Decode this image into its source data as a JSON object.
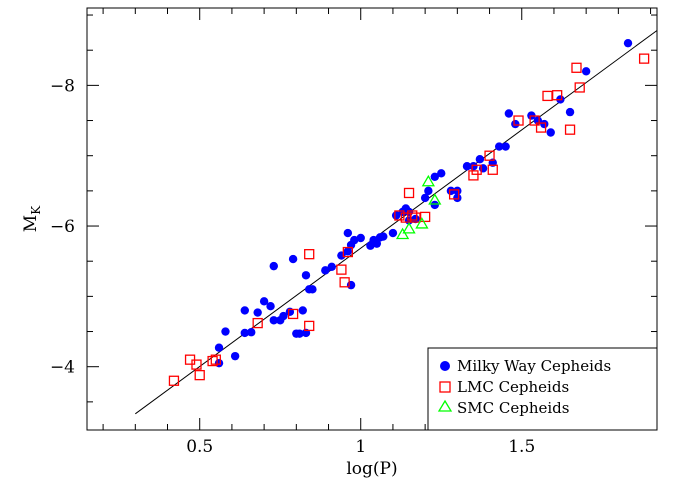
{
  "chart_data": {
    "type": "scatter",
    "xlabel": "log(P)",
    "ylabel_main": "M",
    "ylabel_sub": "K",
    "xlim": [
      0.15,
      1.92
    ],
    "ylim": [
      -3.1,
      -9.1
    ],
    "x_ticks_major": [
      0.5,
      1.0,
      1.5
    ],
    "x_tick_labels": [
      "0.5",
      "1",
      "1.5"
    ],
    "x_ticks_minor": [
      0.2,
      0.3,
      0.4,
      0.6,
      0.7,
      0.8,
      0.9,
      1.1,
      1.2,
      1.3,
      1.4,
      1.6,
      1.7,
      1.8,
      1.9
    ],
    "y_ticks_major": [
      -4,
      -6,
      -8
    ],
    "y_tick_labels": [
      "−4",
      "−6",
      "−8"
    ],
    "y_ticks_minor": [
      -3.5,
      -4.5,
      -5,
      -5.5,
      -6.5,
      -7,
      -7.5,
      -8.5,
      -9
    ],
    "fit_line": {
      "x": [
        0.3,
        1.92
      ],
      "y": [
        -3.33,
        -8.78
      ]
    },
    "legend_position": "bottom-right",
    "grid": false,
    "series": [
      {
        "name": "Milky Way Cepheids",
        "marker": "filled-circle",
        "color": "#0000ff",
        "points": [
          [
            0.56,
            -4.05
          ],
          [
            0.61,
            -4.15
          ],
          [
            0.56,
            -4.27
          ],
          [
            0.58,
            -4.5
          ],
          [
            0.64,
            -4.48
          ],
          [
            0.66,
            -4.49
          ],
          [
            0.64,
            -4.8
          ],
          [
            0.68,
            -4.77
          ],
          [
            0.7,
            -4.93
          ],
          [
            0.72,
            -4.86
          ],
          [
            0.73,
            -4.66
          ],
          [
            0.75,
            -4.66
          ],
          [
            0.76,
            -4.72
          ],
          [
            0.78,
            -4.78
          ],
          [
            0.8,
            -4.47
          ],
          [
            0.81,
            -4.47
          ],
          [
            0.83,
            -4.48
          ],
          [
            0.82,
            -4.8
          ],
          [
            0.84,
            -5.1
          ],
          [
            0.85,
            -5.1
          ],
          [
            0.83,
            -5.3
          ],
          [
            0.79,
            -5.53
          ],
          [
            0.73,
            -5.43
          ],
          [
            0.89,
            -5.37
          ],
          [
            0.91,
            -5.42
          ],
          [
            0.94,
            -5.58
          ],
          [
            0.96,
            -5.64
          ],
          [
            0.97,
            -5.16
          ],
          [
            0.97,
            -5.73
          ],
          [
            0.98,
            -5.8
          ],
          [
            1.0,
            -5.83
          ],
          [
            0.96,
            -5.9
          ],
          [
            1.03,
            -5.72
          ],
          [
            1.04,
            -5.8
          ],
          [
            1.05,
            -5.75
          ],
          [
            1.06,
            -5.84
          ],
          [
            1.07,
            -5.85
          ],
          [
            1.1,
            -5.9
          ],
          [
            1.11,
            -6.15
          ],
          [
            1.13,
            -6.2
          ],
          [
            1.14,
            -6.25
          ],
          [
            1.15,
            -6.2
          ],
          [
            1.15,
            -6.08
          ],
          [
            1.17,
            -6.1
          ],
          [
            1.2,
            -6.4
          ],
          [
            1.23,
            -6.3
          ],
          [
            1.21,
            -6.5
          ],
          [
            1.23,
            -6.7
          ],
          [
            1.25,
            -6.75
          ],
          [
            1.28,
            -6.5
          ],
          [
            1.3,
            -6.4
          ],
          [
            1.3,
            -6.5
          ],
          [
            1.33,
            -6.85
          ],
          [
            1.35,
            -6.85
          ],
          [
            1.37,
            -6.95
          ],
          [
            1.38,
            -6.82
          ],
          [
            1.41,
            -6.9
          ],
          [
            1.43,
            -7.13
          ],
          [
            1.45,
            -7.13
          ],
          [
            1.46,
            -7.6
          ],
          [
            1.48,
            -7.45
          ],
          [
            1.53,
            -7.57
          ],
          [
            1.55,
            -7.5
          ],
          [
            1.57,
            -7.45
          ],
          [
            1.59,
            -7.33
          ],
          [
            1.62,
            -7.8
          ],
          [
            1.65,
            -7.62
          ],
          [
            1.7,
            -8.2
          ],
          [
            1.83,
            -8.6
          ]
        ]
      },
      {
        "name": "LMC Cepheids",
        "marker": "open-square",
        "color": "#ff0000",
        "points": [
          [
            0.42,
            -3.8
          ],
          [
            0.47,
            -4.1
          ],
          [
            0.49,
            -4.03
          ],
          [
            0.5,
            -3.88
          ],
          [
            0.54,
            -4.08
          ],
          [
            0.55,
            -4.1
          ],
          [
            0.68,
            -4.62
          ],
          [
            0.79,
            -4.75
          ],
          [
            0.84,
            -4.58
          ],
          [
            0.84,
            -5.6
          ],
          [
            0.94,
            -5.38
          ],
          [
            0.95,
            -5.2
          ],
          [
            0.96,
            -5.63
          ],
          [
            1.12,
            -6.15
          ],
          [
            1.14,
            -6.12
          ],
          [
            1.15,
            -6.47
          ],
          [
            1.16,
            -6.15
          ],
          [
            1.17,
            -6.12
          ],
          [
            1.2,
            -6.13
          ],
          [
            1.29,
            -6.45
          ],
          [
            1.35,
            -6.72
          ],
          [
            1.36,
            -6.8
          ],
          [
            1.4,
            -7.0
          ],
          [
            1.41,
            -6.8
          ],
          [
            1.49,
            -7.5
          ],
          [
            1.54,
            -7.5
          ],
          [
            1.56,
            -7.4
          ],
          [
            1.58,
            -7.85
          ],
          [
            1.61,
            -7.86
          ],
          [
            1.65,
            -7.37
          ],
          [
            1.67,
            -8.25
          ],
          [
            1.68,
            -7.97
          ],
          [
            1.88,
            -8.38
          ]
        ]
      },
      {
        "name": "SMC Cepheids",
        "marker": "open-triangle",
        "color": "#00ff00",
        "points": [
          [
            1.13,
            -5.88
          ],
          [
            1.15,
            -5.96
          ],
          [
            1.19,
            -6.03
          ],
          [
            1.21,
            -6.63
          ],
          [
            1.23,
            -6.37
          ]
        ]
      }
    ]
  }
}
